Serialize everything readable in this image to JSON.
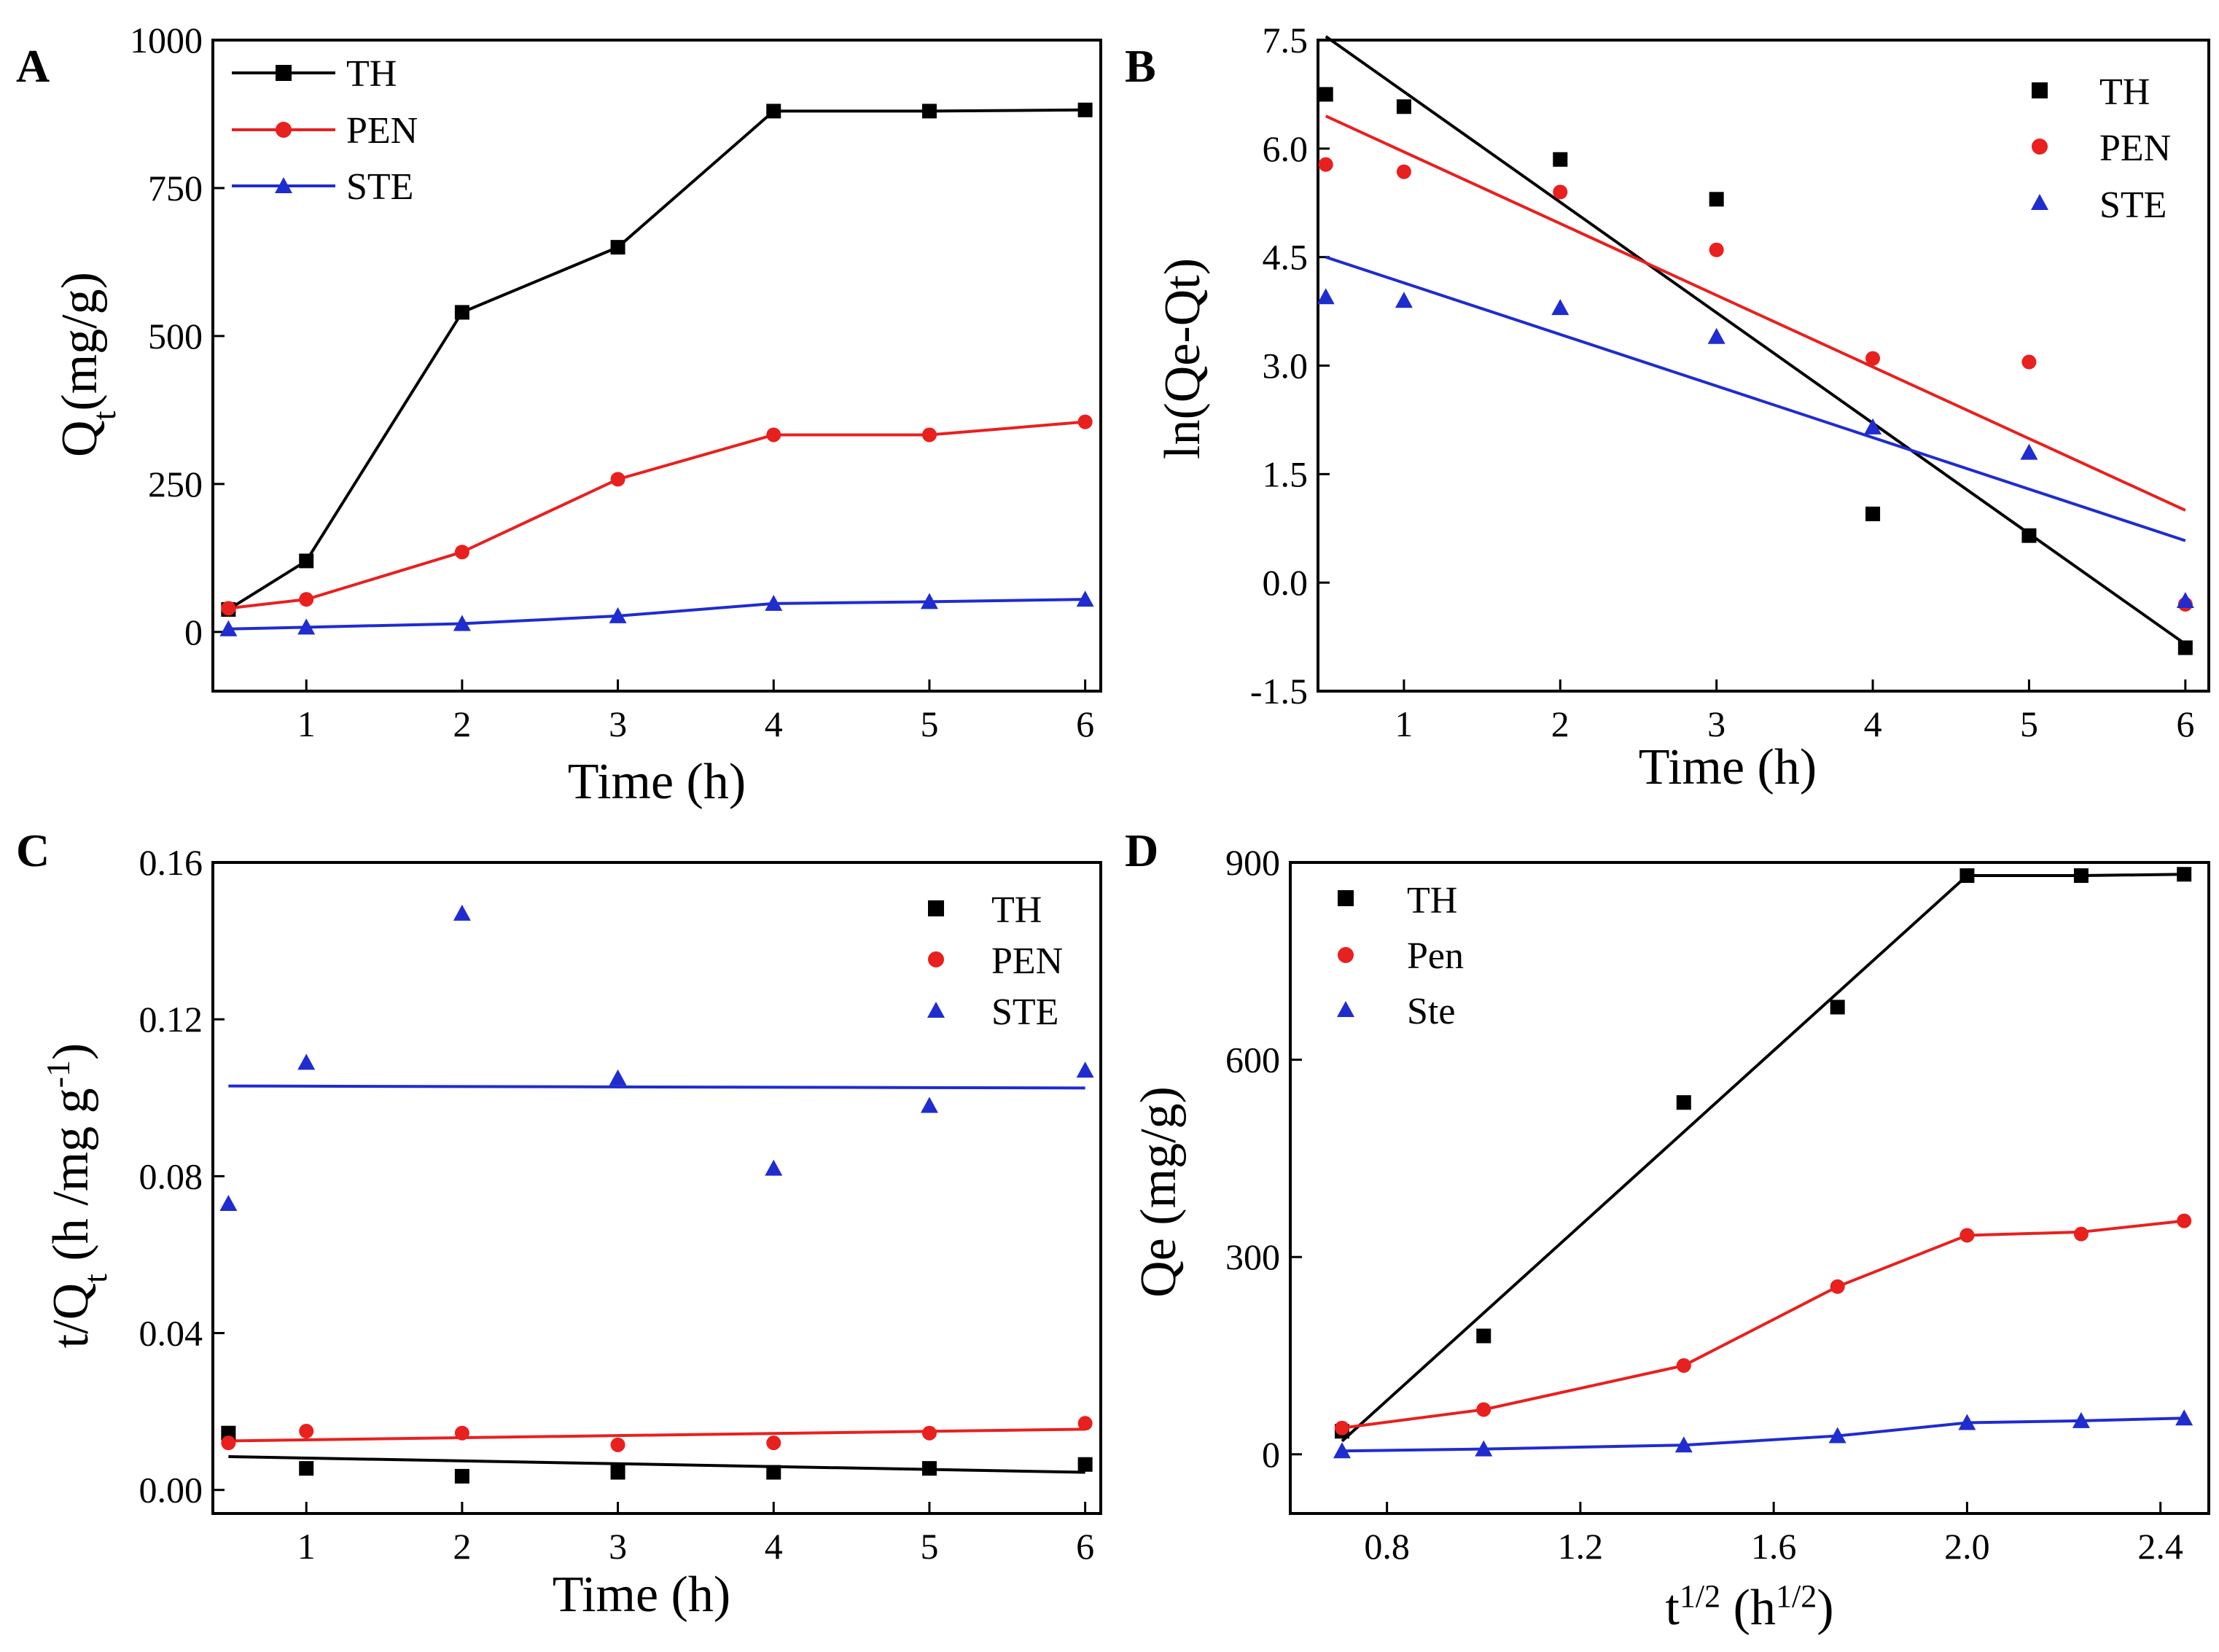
{
  "colors": {
    "TH": "#000000",
    "PEN": "#e8201e",
    "STE": "#1f2ccf"
  },
  "chart_data": [
    {
      "panel": "A",
      "type": "line",
      "xlabel": "Time (h)",
      "ylabel_main": "Q",
      "ylabel_sub": "t",
      "ylabel_tail": "(mg/g)",
      "xlim": [
        0.4,
        6.1
      ],
      "ylim": [
        -100,
        1000
      ],
      "xticks": [
        1,
        2,
        3,
        4,
        5,
        6
      ],
      "xtick_labels": [
        "1",
        "2",
        "3",
        "4",
        "5",
        "6"
      ],
      "yticks": [
        0,
        250,
        500,
        750,
        1000
      ],
      "ytick_labels": [
        "0",
        "250",
        "500",
        "750",
        "1000"
      ],
      "legend_position": "top-left",
      "x": [
        0.5,
        1,
        2,
        3,
        4,
        5,
        6
      ],
      "series": [
        {
          "name": "TH",
          "color": "TH",
          "marker": "square",
          "values": [
            38,
            120,
            540,
            650,
            880,
            880,
            882
          ]
        },
        {
          "name": "PEN",
          "color": "PEN",
          "marker": "circle",
          "values": [
            40,
            55,
            135,
            258,
            333,
            333,
            355
          ]
        },
        {
          "name": "STE",
          "color": "STE",
          "marker": "triangle",
          "values": [
            5,
            8,
            14,
            27,
            48,
            51,
            55
          ]
        }
      ]
    },
    {
      "panel": "B",
      "type": "scatter",
      "xlabel": "Time (h)",
      "ylabel": "ln(Qe-Qt)",
      "xlim": [
        0.45,
        6.15
      ],
      "ylim": [
        -1.5,
        7.5
      ],
      "xticks": [
        1,
        2,
        3,
        4,
        5,
        6
      ],
      "xtick_labels": [
        "1",
        "2",
        "3",
        "4",
        "5",
        "6"
      ],
      "yticks": [
        -1.5,
        0,
        1.5,
        3,
        4.5,
        6,
        7.5
      ],
      "ytick_labels": [
        "-1.5",
        "0.0",
        "1.5",
        "3.0",
        "4.5",
        "6.0",
        "7.5"
      ],
      "legend_position": "top-right",
      "x": [
        0.5,
        1,
        2,
        3,
        4,
        5,
        6
      ],
      "series": [
        {
          "name": "TH",
          "color": "TH",
          "marker": "square",
          "values": [
            6.75,
            6.58,
            5.85,
            5.3,
            0.95,
            0.65,
            -0.9
          ],
          "fit": [
            [
              0.5,
              7.55
            ],
            [
              6,
              -0.85
            ]
          ]
        },
        {
          "name": "PEN",
          "color": "PEN",
          "marker": "circle",
          "values": [
            5.78,
            5.68,
            5.4,
            4.6,
            3.1,
            3.05,
            -0.3
          ],
          "fit": [
            [
              0.5,
              6.45
            ],
            [
              6,
              1.0
            ]
          ]
        },
        {
          "name": "STE",
          "color": "STE",
          "marker": "triangle",
          "values": [
            3.95,
            3.9,
            3.8,
            3.4,
            2.15,
            1.8,
            -0.25
          ],
          "fit": [
            [
              0.5,
              4.5
            ],
            [
              6,
              0.58
            ]
          ]
        }
      ]
    },
    {
      "panel": "C",
      "type": "scatter",
      "xlabel": "Time (h)",
      "ylabel_main": "t/Q",
      "ylabel_sub": "t",
      "ylabel_tail": " (h /mg g",
      "ylabel_sup": "-1",
      "ylabel_close": ")",
      "xlim": [
        0.4,
        6.1
      ],
      "ylim": [
        -0.006,
        0.16
      ],
      "xticks": [
        1,
        2,
        3,
        4,
        5,
        6
      ],
      "xtick_labels": [
        "1",
        "2",
        "3",
        "4",
        "5",
        "6"
      ],
      "yticks": [
        0,
        0.04,
        0.08,
        0.12,
        0.16
      ],
      "ytick_labels": [
        "0.00",
        "0.04",
        "0.08",
        "0.12",
        "0.16"
      ],
      "legend_position": "top-right",
      "x": [
        0.5,
        1,
        2,
        3,
        4,
        5,
        6
      ],
      "series": [
        {
          "name": "TH",
          "color": "TH",
          "marker": "square",
          "values": [
            0.0145,
            0.0055,
            0.0035,
            0.0045,
            0.0045,
            0.0055,
            0.0065
          ],
          "fit": [
            [
              0.5,
              0.0085
            ],
            [
              6,
              0.0045
            ]
          ]
        },
        {
          "name": "PEN",
          "color": "PEN",
          "marker": "circle",
          "values": [
            0.012,
            0.015,
            0.0145,
            0.0115,
            0.012,
            0.0145,
            0.017
          ],
          "fit": [
            [
              0.5,
              0.0125
            ],
            [
              6,
              0.0155
            ]
          ]
        },
        {
          "name": "STE",
          "color": "STE",
          "marker": "triangle",
          "values": [
            0.073,
            0.109,
            0.147,
            0.105,
            0.082,
            0.098,
            0.107
          ],
          "fit": [
            [
              0.5,
              0.103
            ],
            [
              6,
              0.1025
            ]
          ]
        }
      ]
    },
    {
      "panel": "D",
      "type": "line",
      "xlabel_main": "t",
      "xlabel_sup": "1/2",
      "xlabel_mid": " (h",
      "xlabel_sup2": "1/2",
      "xlabel_close": ")",
      "ylabel": "Qe (mg/g)",
      "xlim": [
        0.6,
        2.5
      ],
      "ylim": [
        -90,
        900
      ],
      "xticks": [
        0.8,
        1.2,
        1.6,
        2.0,
        2.4
      ],
      "xtick_labels": [
        "0.8",
        "1.2",
        "1.6",
        "2.0",
        "2.4"
      ],
      "yticks": [
        0,
        300,
        600,
        900
      ],
      "ytick_labels": [
        "0",
        "300",
        "600",
        "900"
      ],
      "legend_position": "top-left",
      "x": [
        0.707,
        1.0,
        1.414,
        1.732,
        2.0,
        2.236,
        2.449
      ],
      "series": [
        {
          "name": "TH",
          "color": "TH",
          "marker": "square",
          "values": [
            35,
            180,
            535,
            680,
            880,
            880,
            882
          ],
          "line": [
            [
              0.707,
              20
            ],
            [
              2.0,
              880
            ],
            [
              2.236,
              880
            ],
            [
              2.449,
              882
            ]
          ]
        },
        {
          "name": "Pen",
          "color": "PEN",
          "marker": "circle",
          "values": [
            40,
            68,
            135,
            255,
            333,
            335,
            355
          ],
          "line": [
            [
              0.707,
              40
            ],
            [
              1.0,
              68
            ],
            [
              1.414,
              135
            ],
            [
              1.732,
              255
            ],
            [
              2.0,
              333
            ],
            [
              2.236,
              338
            ],
            [
              2.449,
              355
            ]
          ]
        },
        {
          "name": "Ste",
          "color": "STE",
          "marker": "triangle",
          "values": [
            5,
            8,
            14,
            28,
            48,
            51,
            55
          ],
          "line": [
            [
              0.707,
              5
            ],
            [
              1.0,
              8
            ],
            [
              1.414,
              14
            ],
            [
              1.732,
              28
            ],
            [
              2.0,
              48
            ],
            [
              2.236,
              51
            ],
            [
              2.449,
              55
            ]
          ]
        }
      ]
    }
  ]
}
